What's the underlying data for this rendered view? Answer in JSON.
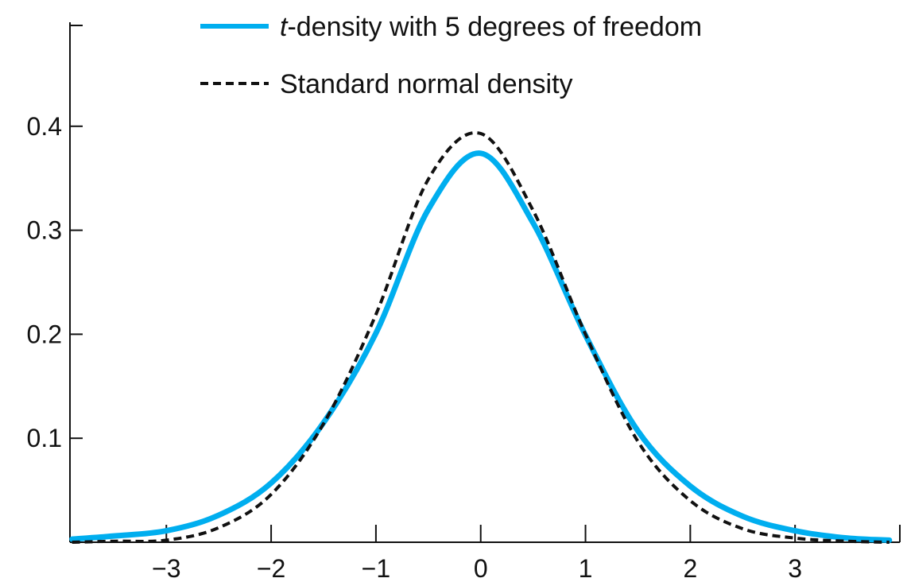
{
  "chart_data": {
    "type": "line",
    "title": "",
    "xlabel": "",
    "ylabel": "",
    "xlim": [
      -3.92,
      4.0
    ],
    "ylim": [
      0,
      0.5
    ],
    "grid": false,
    "legend_position": "top-left",
    "xticks": [
      -3,
      -2,
      -1,
      0,
      1,
      2,
      3
    ],
    "xtick_labels": [
      "−3",
      "−2",
      "−1",
      "0",
      "1",
      "2",
      "3"
    ],
    "yticks": [
      0.1,
      0.2,
      0.3,
      0.4
    ],
    "ytick_labels": [
      "0.1",
      "0.2",
      "0.3",
      "0.4"
    ],
    "series": [
      {
        "name": "t-density with 5 degrees of freedom",
        "name_italic_part": "t",
        "name_rest": "-density with 5 degrees of freedom",
        "style": "solid",
        "color": "#00aeef",
        "x": [
          -3.9,
          -3.5,
          -3.0,
          -2.5,
          -2.0,
          -1.5,
          -1.0,
          -0.5,
          0.0,
          0.5,
          1.0,
          1.5,
          2.0,
          2.5,
          3.0,
          3.5,
          3.9
        ],
        "y": [
          0.003,
          0.006,
          0.011,
          0.026,
          0.057,
          0.115,
          0.201,
          0.32,
          0.374,
          0.307,
          0.199,
          0.107,
          0.054,
          0.025,
          0.011,
          0.004,
          0.002
        ]
      },
      {
        "name": "Standard normal density",
        "style": "dashed",
        "color": "#111111",
        "x": [
          -3.9,
          -3.5,
          -3.0,
          -2.5,
          -2.0,
          -1.5,
          -1.0,
          -0.5,
          0.0,
          0.5,
          1.0,
          1.5,
          2.0,
          2.5,
          3.0,
          3.5,
          3.9
        ],
        "y": [
          0.0,
          0.001,
          0.002,
          0.014,
          0.046,
          0.114,
          0.219,
          0.349,
          0.393,
          0.319,
          0.2,
          0.097,
          0.04,
          0.013,
          0.004,
          0.001,
          0.0
        ]
      }
    ]
  }
}
